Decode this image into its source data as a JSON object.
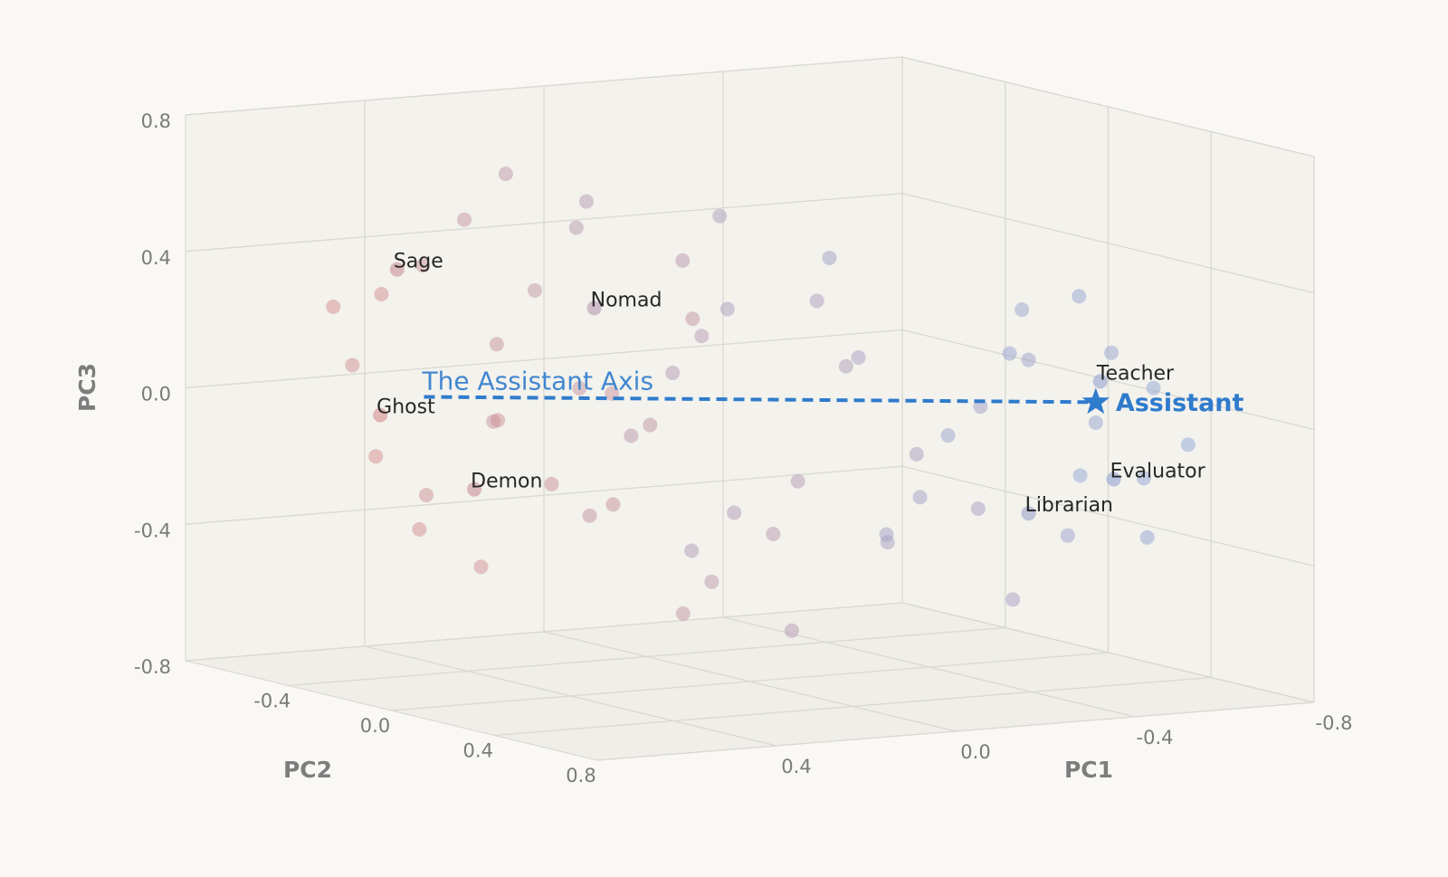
{
  "chart_data": {
    "type": "scatter3d",
    "x_label": "PC1",
    "y_label": "PC2",
    "z_label": "PC3",
    "xlim": [
      -0.8,
      0.8
    ],
    "ylim": [
      -0.8,
      0.8
    ],
    "zlim": [
      -0.8,
      0.8
    ],
    "xticks": [
      0.4,
      {
        "value": 0,
        "label": "0.0"
      },
      -0.4,
      -0.8
    ],
    "yticks": [
      -0.4,
      {
        "value": 0,
        "label": "0.0"
      },
      0.4,
      0.8
    ],
    "zticks": [
      -0.8,
      -0.4,
      {
        "value": 0,
        "label": "0.0"
      },
      0.4,
      0.8
    ],
    "grid": true,
    "color_scale": {
      "low": "#8da7db",
      "high": "#d98b8b"
    },
    "x": [
      0.7,
      0.65,
      0.6,
      0.72,
      0.68,
      0.55,
      0.6,
      0.5,
      0.45,
      0.5,
      0.4,
      0.35,
      0.38,
      0.3,
      0.42,
      0.25,
      0.2,
      0.28,
      0.15,
      0.2,
      0.1,
      0.05,
      0.12,
      0.0,
      -0.05,
      0.02,
      -0.1,
      -0.08,
      -0.15,
      -0.2,
      -0.18,
      -0.25,
      -0.3,
      -0.28,
      -0.35,
      -0.4,
      -0.38,
      -0.45,
      -0.5,
      -0.48,
      -0.55,
      -0.6,
      -0.58,
      -0.65,
      -0.62,
      -0.7,
      -0.68,
      -0.72,
      0.62,
      0.3,
      -0.1,
      0.05,
      -0.3,
      0.35,
      -0.52,
      0.15,
      -0.22,
      0.48,
      -0.42,
      -0.6
    ],
    "y": [
      -0.4,
      -0.3,
      -0.5,
      -0.2,
      -0.1,
      -0.3,
      0.0,
      -0.4,
      -0.2,
      0.1,
      -0.3,
      -0.5,
      0.0,
      -0.1,
      0.2,
      -0.4,
      -0.6,
      0.1,
      -0.2,
      0.2,
      -0.5,
      -0.1,
      0.3,
      -0.3,
      0.1,
      -0.6,
      0.2,
      -0.2,
      0.0,
      0.3,
      -0.4,
      0.1,
      -0.1,
      0.4,
      -0.3,
      0.2,
      0.0,
      0.3,
      -0.1,
      0.4,
      0.1,
      0.3,
      0.0,
      0.4,
      0.2,
      0.35,
      0.1,
      0.45,
      0.1,
      0.3,
      -0.4,
      0.25,
      0.5,
      0.35,
      0.5,
      0.0,
      -0.5,
      0.3,
      -0.2,
      0.5
    ],
    "z": [
      0.3,
      0.35,
      0.1,
      -0.1,
      -0.3,
      -0.25,
      -0.4,
      0.4,
      0.2,
      -0.15,
      -0.05,
      0.5,
      0.1,
      -0.3,
      -0.2,
      0.3,
      0.6,
      0.0,
      -0.1,
      -0.45,
      0.45,
      0.2,
      -0.3,
      0.05,
      -0.2,
      0.5,
      0.15,
      -0.35,
      0.3,
      -0.1,
      0.2,
      -0.4,
      0.1,
      -0.25,
      0.35,
      0.0,
      -0.3,
      0.15,
      -0.15,
      -0.35,
      0.25,
      -0.05,
      0.1,
      -0.2,
      0.3,
      0.05,
      -0.25,
      -0.1,
      0.05,
      0.35,
      -0.5,
      -0.6,
      -0.5,
      -0.5,
      0.2,
      0.45,
      0.45,
      0.15,
      -0.45,
      -0.35
    ],
    "annotations": [
      {
        "text": "Sage",
        "x": 0.5,
        "y": -0.5,
        "z": 0.37
      },
      {
        "text": "Nomad",
        "x": 0.06,
        "y": -0.5,
        "z": 0.21
      },
      {
        "text": "Ghost",
        "x": 0.71,
        "y": -0.2,
        "z": 0.02
      },
      {
        "text": "Demon",
        "x": 0.5,
        "y": -0.2,
        "z": -0.22
      },
      {
        "text": "Teacher",
        "x": -0.61,
        "y": 0.3,
        "z": 0.07
      },
      {
        "text": "Evaluator",
        "x": -0.64,
        "y": 0.3,
        "z": -0.22
      },
      {
        "text": "Librarian",
        "x": -0.45,
        "y": 0.3,
        "z": -0.3
      }
    ],
    "assistant": {
      "text": "Assistant",
      "x": -0.6,
      "y": 0.3,
      "z": 0.01,
      "color": "#2f7bcc"
    },
    "axis_line": {
      "label": "The Assistant Axis",
      "x": 0.44,
      "y": -0.5,
      "z": -0.01,
      "color": "#2f7bcc"
    }
  }
}
